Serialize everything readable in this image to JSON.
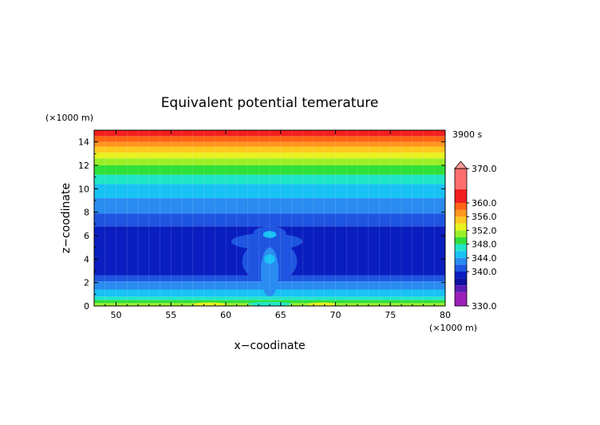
{
  "chart_data": {
    "type": "heatmap",
    "title": "Equivalent potential temerature",
    "xlabel": "x−coodinate",
    "ylabel": "z−coodinate",
    "x_unit": "(×1000 m)",
    "y_unit": "(×1000 m)",
    "time_label": "3900 s",
    "xlim": [
      48,
      80
    ],
    "ylim": [
      0,
      15
    ],
    "x_ticks": [
      "50",
      "55",
      "60",
      "65",
      "70",
      "75",
      "80"
    ],
    "y_ticks": [
      "0",
      "2",
      "4",
      "6",
      "8",
      "10",
      "12",
      "14"
    ],
    "colorbar": {
      "range": [
        330,
        370
      ],
      "labels": [
        "330.0",
        "340.0",
        "344.0",
        "348.0",
        "352.0",
        "356.0",
        "360.0",
        "370.0"
      ],
      "levels": [
        {
          "from": 330,
          "to": 334,
          "color": "#9b1fb8"
        },
        {
          "from": 334,
          "to": 336,
          "color": "#5a1cb4"
        },
        {
          "from": 336,
          "to": 338,
          "color": "#1010a0"
        },
        {
          "from": 338,
          "to": 340,
          "color": "#0a1ec0"
        },
        {
          "from": 340,
          "to": 342,
          "color": "#1e55e0"
        },
        {
          "from": 342,
          "to": 344,
          "color": "#2a8cf0"
        },
        {
          "from": 344,
          "to": 346,
          "color": "#19c2f5"
        },
        {
          "from": 346,
          "to": 348,
          "color": "#20e6c8"
        },
        {
          "from": 348,
          "to": 350,
          "color": "#2fe03a"
        },
        {
          "from": 350,
          "to": 352,
          "color": "#9aef2a"
        },
        {
          "from": 352,
          "to": 354,
          "color": "#e8f21e"
        },
        {
          "from": 354,
          "to": 356,
          "color": "#ffc81e"
        },
        {
          "from": 356,
          "to": 358,
          "color": "#ff961e"
        },
        {
          "from": 358,
          "to": 360,
          "color": "#ff6414"
        },
        {
          "from": 360,
          "to": 364,
          "color": "#f21e1e"
        },
        {
          "from": 364,
          "to": 370,
          "color": "#ff6e6e"
        }
      ],
      "over_color": "#ff9a9a"
    },
    "layers": [
      {
        "z_from": 0.0,
        "z_to": 0.25,
        "value": 350
      },
      {
        "z_from": 0.25,
        "z_to": 0.5,
        "value": 348
      },
      {
        "z_from": 0.5,
        "z_to": 0.8,
        "value": 347
      },
      {
        "z_from": 0.8,
        "z_to": 1.4,
        "value": 345
      },
      {
        "z_from": 1.4,
        "z_to": 2.1,
        "value": 343
      },
      {
        "z_from": 2.1,
        "z_to": 2.6,
        "value": 341
      },
      {
        "z_from": 2.6,
        "z_to": 6.8,
        "value": 339
      },
      {
        "z_from": 6.8,
        "z_to": 7.9,
        "value": 341
      },
      {
        "z_from": 7.9,
        "z_to": 9.2,
        "value": 343
      },
      {
        "z_from": 9.2,
        "z_to": 10.4,
        "value": 345
      },
      {
        "z_from": 10.4,
        "z_to": 11.2,
        "value": 347
      },
      {
        "z_from": 11.2,
        "z_to": 12.0,
        "value": 349
      },
      {
        "z_from": 12.0,
        "z_to": 12.6,
        "value": 351
      },
      {
        "z_from": 12.6,
        "z_to": 13.1,
        "value": 353
      },
      {
        "z_from": 13.1,
        "z_to": 13.6,
        "value": 355
      },
      {
        "z_from": 13.6,
        "z_to": 14.0,
        "value": 357
      },
      {
        "z_from": 14.0,
        "z_to": 14.5,
        "value": 359
      },
      {
        "z_from": 14.5,
        "z_to": 15.0,
        "value": 361
      }
    ],
    "plume": [
      {
        "x_from": 61.5,
        "x_to": 66.5,
        "z_from": 2.0,
        "z_to": 5.6,
        "value": 341
      },
      {
        "x_from": 60.5,
        "x_to": 67.0,
        "z_from": 4.8,
        "z_to": 6.2,
        "value": 341
      },
      {
        "x_from": 62.5,
        "x_to": 65.5,
        "z_from": 5.6,
        "z_to": 6.8,
        "value": 341
      },
      {
        "x_from": 63.2,
        "x_to": 64.8,
        "z_from": 0.8,
        "z_to": 5.0,
        "value": 343
      },
      {
        "x_from": 63.4,
        "x_to": 64.6,
        "z_from": 5.8,
        "z_to": 6.4,
        "value": 345
      },
      {
        "x_from": 63.5,
        "x_to": 64.5,
        "z_from": 3.6,
        "z_to": 4.4,
        "value": 345
      },
      {
        "x_from": 57.0,
        "x_to": 60.0,
        "z_from": 0.0,
        "z_to": 0.3,
        "value": 352
      },
      {
        "x_from": 67.5,
        "x_to": 70.0,
        "z_from": 0.0,
        "z_to": 0.3,
        "value": 352
      },
      {
        "x_from": 62.0,
        "x_to": 66.0,
        "z_from": 0.0,
        "z_to": 0.35,
        "value": 347
      }
    ]
  }
}
